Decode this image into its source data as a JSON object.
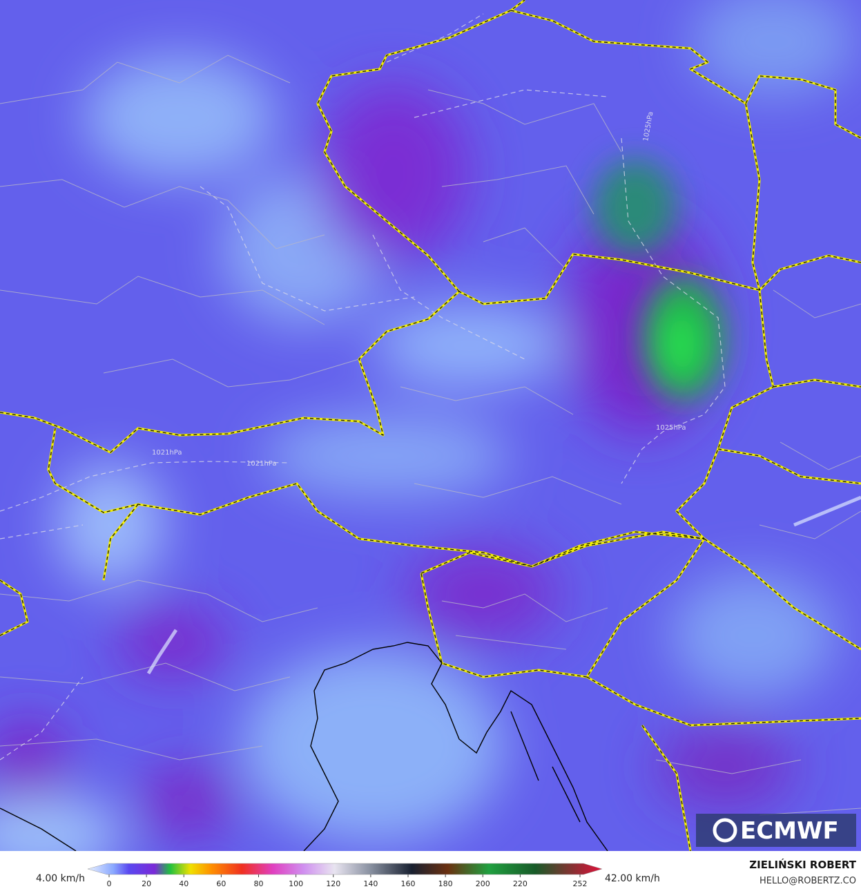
{
  "map": {
    "isobar_labels": [
      "1021hPa",
      "1021hPa",
      "1025hPa",
      "1025hPa"
    ]
  },
  "colorbar": {
    "min_label": "4.00 km/h",
    "max_label": "42.00 km/h",
    "ticks": [
      0,
      20,
      40,
      60,
      80,
      100,
      120,
      140,
      160,
      180,
      200,
      220,
      252
    ]
  },
  "logo": "ECMWF",
  "credit": {
    "author": "ZIELIŃSKI ROBERT",
    "email": "HELLO@ROBERTZ.CO"
  }
}
